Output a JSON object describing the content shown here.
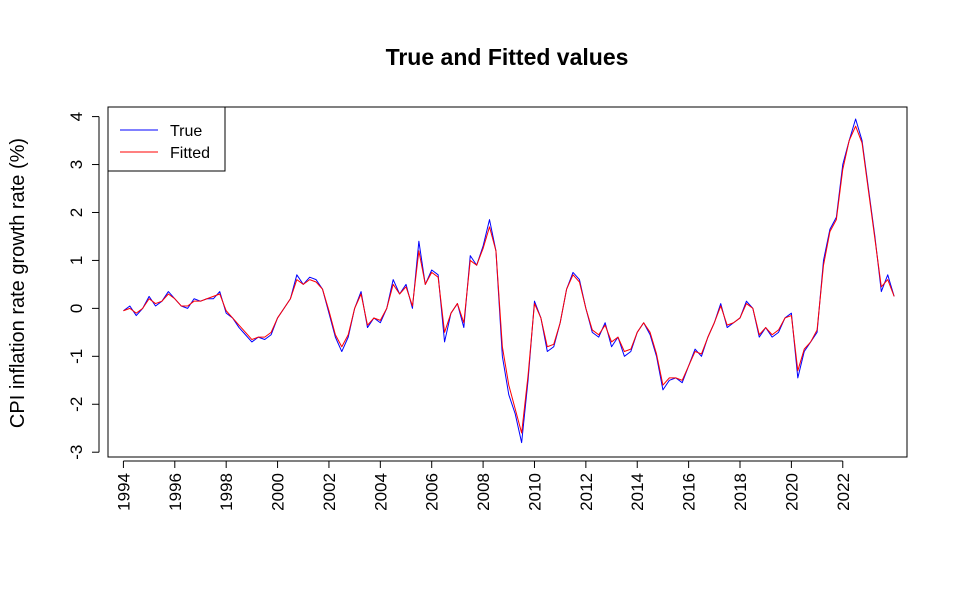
{
  "chart_data": {
    "type": "line",
    "title": "True and Fitted values",
    "xlabel": "",
    "ylabel": "CPI inflation rate growth rate (%)",
    "xlim": [
      1993.4,
      2024.5
    ],
    "ylim": [
      -3.1,
      4.2
    ],
    "x_ticks": [
      1994,
      1996,
      1998,
      2000,
      2002,
      2004,
      2006,
      2008,
      2010,
      2012,
      2014,
      2016,
      2018,
      2020,
      2022
    ],
    "y_ticks": [
      -3,
      -2,
      -1,
      0,
      1,
      2,
      3,
      4
    ],
    "grid": false,
    "legend_position": "top-left",
    "series": [
      {
        "name": "True",
        "color": "#0000ff",
        "points": [
          [
            1994.0,
            -0.05
          ],
          [
            1994.25,
            0.05
          ],
          [
            1994.5,
            -0.15
          ],
          [
            1994.75,
            0.0
          ],
          [
            1995.0,
            0.25
          ],
          [
            1995.25,
            0.05
          ],
          [
            1995.5,
            0.15
          ],
          [
            1995.75,
            0.35
          ],
          [
            1996.0,
            0.2
          ],
          [
            1996.25,
            0.05
          ],
          [
            1996.5,
            0.0
          ],
          [
            1996.75,
            0.2
          ],
          [
            1997.0,
            0.15
          ],
          [
            1997.25,
            0.2
          ],
          [
            1997.5,
            0.2
          ],
          [
            1997.75,
            0.35
          ],
          [
            1998.0,
            -0.1
          ],
          [
            1998.25,
            -0.2
          ],
          [
            1998.5,
            -0.4
          ],
          [
            1998.75,
            -0.55
          ],
          [
            1999.0,
            -0.7
          ],
          [
            1999.25,
            -0.6
          ],
          [
            1999.5,
            -0.65
          ],
          [
            1999.75,
            -0.55
          ],
          [
            2000.0,
            -0.2
          ],
          [
            2000.25,
            0.0
          ],
          [
            2000.5,
            0.2
          ],
          [
            2000.75,
            0.7
          ],
          [
            2001.0,
            0.5
          ],
          [
            2001.25,
            0.65
          ],
          [
            2001.5,
            0.6
          ],
          [
            2001.75,
            0.4
          ],
          [
            2002.0,
            -0.1
          ],
          [
            2002.25,
            -0.6
          ],
          [
            2002.5,
            -0.9
          ],
          [
            2002.75,
            -0.6
          ],
          [
            2003.0,
            0.0
          ],
          [
            2003.25,
            0.35
          ],
          [
            2003.5,
            -0.4
          ],
          [
            2003.75,
            -0.2
          ],
          [
            2004.0,
            -0.3
          ],
          [
            2004.25,
            0.0
          ],
          [
            2004.5,
            0.6
          ],
          [
            2004.75,
            0.3
          ],
          [
            2005.0,
            0.5
          ],
          [
            2005.25,
            0.0
          ],
          [
            2005.5,
            1.4
          ],
          [
            2005.75,
            0.5
          ],
          [
            2006.0,
            0.8
          ],
          [
            2006.25,
            0.7
          ],
          [
            2006.5,
            -0.7
          ],
          [
            2006.75,
            -0.1
          ],
          [
            2007.0,
            0.1
          ],
          [
            2007.25,
            -0.4
          ],
          [
            2007.5,
            1.1
          ],
          [
            2007.75,
            0.9
          ],
          [
            2008.0,
            1.3
          ],
          [
            2008.25,
            1.85
          ],
          [
            2008.5,
            1.2
          ],
          [
            2008.75,
            -1.0
          ],
          [
            2009.0,
            -1.8
          ],
          [
            2009.25,
            -2.2
          ],
          [
            2009.5,
            -2.8
          ],
          [
            2009.75,
            -1.5
          ],
          [
            2010.0,
            0.15
          ],
          [
            2010.25,
            -0.2
          ],
          [
            2010.5,
            -0.9
          ],
          [
            2010.75,
            -0.8
          ],
          [
            2011.0,
            -0.3
          ],
          [
            2011.25,
            0.4
          ],
          [
            2011.5,
            0.75
          ],
          [
            2011.75,
            0.6
          ],
          [
            2012.0,
            0.0
          ],
          [
            2012.25,
            -0.5
          ],
          [
            2012.5,
            -0.6
          ],
          [
            2012.75,
            -0.3
          ],
          [
            2013.0,
            -0.8
          ],
          [
            2013.25,
            -0.6
          ],
          [
            2013.5,
            -1.0
          ],
          [
            2013.75,
            -0.9
          ],
          [
            2014.0,
            -0.5
          ],
          [
            2014.25,
            -0.3
          ],
          [
            2014.5,
            -0.55
          ],
          [
            2014.75,
            -1.0
          ],
          [
            2015.0,
            -1.7
          ],
          [
            2015.25,
            -1.5
          ],
          [
            2015.5,
            -1.45
          ],
          [
            2015.75,
            -1.55
          ],
          [
            2016.0,
            -1.2
          ],
          [
            2016.25,
            -0.85
          ],
          [
            2016.5,
            -1.0
          ],
          [
            2016.75,
            -0.6
          ],
          [
            2017.0,
            -0.3
          ],
          [
            2017.25,
            0.1
          ],
          [
            2017.5,
            -0.4
          ],
          [
            2017.75,
            -0.3
          ],
          [
            2018.0,
            -0.2
          ],
          [
            2018.25,
            0.15
          ],
          [
            2018.5,
            0.0
          ],
          [
            2018.75,
            -0.6
          ],
          [
            2019.0,
            -0.4
          ],
          [
            2019.25,
            -0.6
          ],
          [
            2019.5,
            -0.5
          ],
          [
            2019.75,
            -0.2
          ],
          [
            2020.0,
            -0.1
          ],
          [
            2020.25,
            -1.45
          ],
          [
            2020.5,
            -0.9
          ],
          [
            2020.75,
            -0.7
          ],
          [
            2021.0,
            -0.5
          ],
          [
            2021.25,
            1.0
          ],
          [
            2021.5,
            1.65
          ],
          [
            2021.75,
            1.9
          ],
          [
            2022.0,
            3.0
          ],
          [
            2022.25,
            3.5
          ],
          [
            2022.5,
            3.95
          ],
          [
            2022.75,
            3.5
          ],
          [
            2023.0,
            2.5
          ],
          [
            2023.25,
            1.5
          ],
          [
            2023.5,
            0.35
          ],
          [
            2023.75,
            0.7
          ],
          [
            2024.0,
            0.25
          ]
        ]
      },
      {
        "name": "Fitted",
        "color": "#ff0000",
        "points": [
          [
            1994.0,
            -0.05
          ],
          [
            1994.25,
            0.0
          ],
          [
            1994.5,
            -0.1
          ],
          [
            1994.75,
            0.0
          ],
          [
            1995.0,
            0.2
          ],
          [
            1995.25,
            0.1
          ],
          [
            1995.5,
            0.15
          ],
          [
            1995.75,
            0.3
          ],
          [
            1996.0,
            0.2
          ],
          [
            1996.25,
            0.05
          ],
          [
            1996.5,
            0.05
          ],
          [
            1996.75,
            0.15
          ],
          [
            1997.0,
            0.15
          ],
          [
            1997.25,
            0.2
          ],
          [
            1997.5,
            0.25
          ],
          [
            1997.75,
            0.3
          ],
          [
            1998.0,
            -0.05
          ],
          [
            1998.25,
            -0.2
          ],
          [
            1998.5,
            -0.35
          ],
          [
            1998.75,
            -0.5
          ],
          [
            1999.0,
            -0.65
          ],
          [
            1999.25,
            -0.6
          ],
          [
            1999.5,
            -0.6
          ],
          [
            1999.75,
            -0.5
          ],
          [
            2000.0,
            -0.2
          ],
          [
            2000.25,
            0.0
          ],
          [
            2000.5,
            0.2
          ],
          [
            2000.75,
            0.6
          ],
          [
            2001.0,
            0.5
          ],
          [
            2001.25,
            0.6
          ],
          [
            2001.5,
            0.55
          ],
          [
            2001.75,
            0.4
          ],
          [
            2002.0,
            -0.05
          ],
          [
            2002.25,
            -0.55
          ],
          [
            2002.5,
            -0.8
          ],
          [
            2002.75,
            -0.55
          ],
          [
            2003.0,
            0.0
          ],
          [
            2003.25,
            0.3
          ],
          [
            2003.5,
            -0.35
          ],
          [
            2003.75,
            -0.2
          ],
          [
            2004.0,
            -0.25
          ],
          [
            2004.25,
            0.0
          ],
          [
            2004.5,
            0.5
          ],
          [
            2004.75,
            0.3
          ],
          [
            2005.0,
            0.45
          ],
          [
            2005.25,
            0.05
          ],
          [
            2005.5,
            1.2
          ],
          [
            2005.75,
            0.5
          ],
          [
            2006.0,
            0.75
          ],
          [
            2006.25,
            0.65
          ],
          [
            2006.5,
            -0.5
          ],
          [
            2006.75,
            -0.1
          ],
          [
            2007.0,
            0.1
          ],
          [
            2007.25,
            -0.3
          ],
          [
            2007.5,
            1.0
          ],
          [
            2007.75,
            0.9
          ],
          [
            2008.0,
            1.25
          ],
          [
            2008.25,
            1.7
          ],
          [
            2008.5,
            1.2
          ],
          [
            2008.75,
            -0.8
          ],
          [
            2009.0,
            -1.6
          ],
          [
            2009.25,
            -2.1
          ],
          [
            2009.5,
            -2.6
          ],
          [
            2009.75,
            -1.4
          ],
          [
            2010.0,
            0.1
          ],
          [
            2010.25,
            -0.2
          ],
          [
            2010.5,
            -0.8
          ],
          [
            2010.75,
            -0.75
          ],
          [
            2011.0,
            -0.3
          ],
          [
            2011.25,
            0.4
          ],
          [
            2011.5,
            0.7
          ],
          [
            2011.75,
            0.55
          ],
          [
            2012.0,
            0.0
          ],
          [
            2012.25,
            -0.45
          ],
          [
            2012.5,
            -0.55
          ],
          [
            2012.75,
            -0.35
          ],
          [
            2013.0,
            -0.7
          ],
          [
            2013.25,
            -0.6
          ],
          [
            2013.5,
            -0.9
          ],
          [
            2013.75,
            -0.85
          ],
          [
            2014.0,
            -0.5
          ],
          [
            2014.25,
            -0.3
          ],
          [
            2014.5,
            -0.5
          ],
          [
            2014.75,
            -0.95
          ],
          [
            2015.0,
            -1.6
          ],
          [
            2015.25,
            -1.45
          ],
          [
            2015.5,
            -1.45
          ],
          [
            2015.75,
            -1.5
          ],
          [
            2016.0,
            -1.2
          ],
          [
            2016.25,
            -0.9
          ],
          [
            2016.5,
            -0.95
          ],
          [
            2016.75,
            -0.6
          ],
          [
            2017.0,
            -0.3
          ],
          [
            2017.25,
            0.05
          ],
          [
            2017.5,
            -0.35
          ],
          [
            2017.75,
            -0.3
          ],
          [
            2018.0,
            -0.2
          ],
          [
            2018.25,
            0.1
          ],
          [
            2018.5,
            0.0
          ],
          [
            2018.75,
            -0.55
          ],
          [
            2019.0,
            -0.4
          ],
          [
            2019.25,
            -0.55
          ],
          [
            2019.5,
            -0.45
          ],
          [
            2019.75,
            -0.2
          ],
          [
            2020.0,
            -0.15
          ],
          [
            2020.25,
            -1.3
          ],
          [
            2020.5,
            -0.85
          ],
          [
            2020.75,
            -0.7
          ],
          [
            2021.0,
            -0.45
          ],
          [
            2021.25,
            0.9
          ],
          [
            2021.5,
            1.6
          ],
          [
            2021.75,
            1.85
          ],
          [
            2022.0,
            2.9
          ],
          [
            2022.25,
            3.5
          ],
          [
            2022.5,
            3.8
          ],
          [
            2022.75,
            3.45
          ],
          [
            2023.0,
            2.45
          ],
          [
            2023.25,
            1.45
          ],
          [
            2023.5,
            0.45
          ],
          [
            2023.75,
            0.6
          ],
          [
            2024.0,
            0.25
          ]
        ]
      }
    ]
  }
}
